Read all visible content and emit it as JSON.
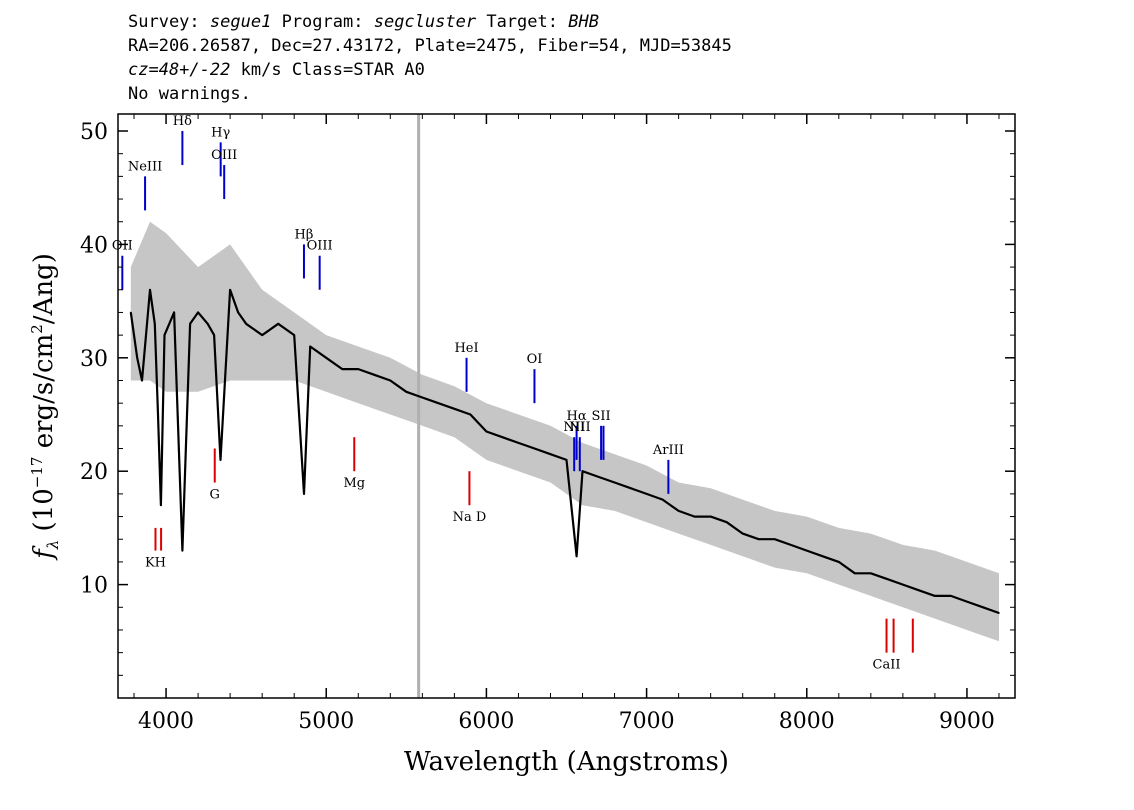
{
  "header": {
    "survey_label": "Survey:",
    "survey": "segue1",
    "program_label": "Program:",
    "program": "segcluster",
    "target_label": "Target:",
    "target": "BHB",
    "line2": "RA=206.26587, Dec=27.43172, Plate=2475, Fiber=54, MJD=53845",
    "redshift": "cz=48+/-22",
    "redshift_unit": "km/s",
    "class_text": "Class=STAR A0",
    "warnings": "No warnings."
  },
  "chart_data": {
    "type": "line",
    "xlabel": "Wavelength (Angstroms)",
    "ylabel": "f_λ (10^-17 erg/s/cm^2/Ang)",
    "xlim": [
      3700,
      9300
    ],
    "ylim": [
      0,
      51.5
    ],
    "x_ticks": [
      4000,
      5000,
      6000,
      7000,
      8000,
      9000
    ],
    "y_ticks": [
      10,
      20,
      30,
      40,
      50
    ],
    "gray_vertical_line_x": 5577,
    "colors": {
      "flux": "#000000",
      "error": "#c0c0c0",
      "emission": "#0000cc",
      "absorption": "#dd0000",
      "marker": "#000000",
      "sky_line": "#b0b0b0"
    },
    "series": [
      {
        "kind": "flux",
        "x": [
          3780,
          3820,
          3850,
          3900,
          3930,
          3950,
          3968,
          3990,
          4050,
          4102,
          4150,
          4200,
          4260,
          4300,
          4340,
          4400,
          4450,
          4500,
          4600,
          4700,
          4800,
          4861,
          4900,
          5000,
          5100,
          5200,
          5300,
          5400,
          5500,
          5600,
          5700,
          5800,
          5900,
          6000,
          6100,
          6200,
          6300,
          6400,
          6500,
          6563,
          6600,
          6700,
          6800,
          6900,
          7000,
          7100,
          7200,
          7300,
          7400,
          7500,
          7600,
          7700,
          7800,
          7900,
          8000,
          8100,
          8200,
          8300,
          8400,
          8500,
          8600,
          8700,
          8800,
          8900,
          9000,
          9100,
          9200
        ],
        "y": [
          34,
          30,
          28,
          36,
          33,
          25,
          17,
          32,
          34,
          13,
          33,
          34,
          33,
          32,
          21,
          36,
          34,
          33,
          32,
          33,
          32,
          18,
          31,
          30,
          29,
          29,
          28.5,
          28,
          27,
          26.5,
          26,
          25.5,
          25,
          23.5,
          23,
          22.5,
          22,
          21.5,
          21,
          12.5,
          20,
          19.5,
          19,
          18.5,
          18,
          17.5,
          16.5,
          16,
          16,
          15.5,
          14.5,
          14,
          14,
          13.5,
          13,
          12.5,
          12,
          11,
          11,
          10.5,
          10,
          9.5,
          9,
          9,
          8.5,
          8,
          7.5
        ]
      },
      {
        "kind": "error_band",
        "x": [
          3780,
          3900,
          4000,
          4200,
          4400,
          4600,
          4800,
          5000,
          5200,
          5400,
          5600,
          5800,
          6000,
          6200,
          6400,
          6600,
          6800,
          7000,
          7200,
          7400,
          7600,
          7800,
          8000,
          8200,
          8400,
          8600,
          8800,
          9000,
          9200
        ],
        "upper": [
          38,
          42,
          41,
          38,
          40,
          36,
          34,
          32,
          31,
          30,
          28.5,
          27.5,
          26,
          25,
          24,
          22.5,
          21.5,
          20.5,
          19,
          18.5,
          17.5,
          16.5,
          16,
          15,
          14.5,
          13.5,
          13,
          12,
          11
        ],
        "lower": [
          28,
          28,
          27,
          27,
          28,
          28,
          28,
          27,
          26,
          25,
          24,
          23,
          21,
          20,
          19,
          17,
          16.5,
          15.5,
          14.5,
          13.5,
          12.5,
          11.5,
          11,
          10,
          9,
          8,
          7,
          6,
          5
        ]
      }
    ],
    "line_markers": [
      {
        "label": "OII",
        "x": 3727,
        "y1": 36,
        "y2": 39,
        "kind": "emission"
      },
      {
        "label": "NeIII",
        "x": 3869,
        "y1": 43,
        "y2": 46,
        "kind": "emission"
      },
      {
        "label": "Hδ",
        "x": 4102,
        "y1": 47,
        "y2": 50,
        "kind": "emission"
      },
      {
        "label": "Hγ",
        "x": 4341,
        "y1": 46,
        "y2": 49,
        "kind": "emission"
      },
      {
        "label": "OIII",
        "x": 4363,
        "y1": 44,
        "y2": 47,
        "kind": "emission"
      },
      {
        "label": "Hβ",
        "x": 4861,
        "y1": 37,
        "y2": 40,
        "kind": "emission"
      },
      {
        "label": "OIII",
        "x": 4959,
        "y1": 36,
        "y2": 39,
        "kind": "emission"
      },
      {
        "label": "HeI",
        "x": 5876,
        "y1": 27,
        "y2": 30,
        "kind": "emission"
      },
      {
        "label": "OI",
        "x": 6300,
        "y1": 26,
        "y2": 29,
        "kind": "emission"
      },
      {
        "label": "NII",
        "x": 6548,
        "y1": 20,
        "y2": 23,
        "kind": "emission"
      },
      {
        "label": "Hα",
        "x": 6563,
        "y1": 21,
        "y2": 24,
        "kind": "emission"
      },
      {
        "label": "NII",
        "x": 6583,
        "y1": 20,
        "y2": 23,
        "kind": "emission"
      },
      {
        "label": "SII",
        "x": 6716,
        "y1": 21,
        "y2": 24,
        "kind": "emission"
      },
      {
        "label": "SII",
        "x": 6731,
        "y1": 21,
        "y2": 24,
        "kind": "emission"
      },
      {
        "label": "ArIII",
        "x": 7136,
        "y1": 18,
        "y2": 21,
        "kind": "emission"
      },
      {
        "label": "KH",
        "x": 3934,
        "y1": 13,
        "y2": 15,
        "kind": "absorption"
      },
      {
        "label": "KH",
        "x": 3969,
        "y1": 13,
        "y2": 15,
        "kind": "absorption"
      },
      {
        "label": "G",
        "x": 4304,
        "y1": 19,
        "y2": 22,
        "kind": "absorption"
      },
      {
        "label": "Mg",
        "x": 5175,
        "y1": 20,
        "y2": 23,
        "kind": "absorption"
      },
      {
        "label": "Na D",
        "x": 5894,
        "y1": 17,
        "y2": 20,
        "kind": "absorption"
      },
      {
        "label": "CaII",
        "x": 8498,
        "y1": 4,
        "y2": 7,
        "kind": "absorption"
      },
      {
        "label": "CaII",
        "x": 8542,
        "y1": 4,
        "y2": 7,
        "kind": "absorption"
      },
      {
        "label": "CaII",
        "x": 8662,
        "y1": 4,
        "y2": 7,
        "kind": "absorption"
      }
    ],
    "label_texts": [
      "OII",
      "NeIII",
      "Hδ",
      "Hγ",
      "OIII",
      "Hβ",
      "OIII",
      "HeI",
      "OI",
      "NII",
      "Hα",
      "NII",
      "SII",
      "ArIII",
      "KH",
      "G",
      "Mg",
      "Na D",
      "CaII"
    ]
  }
}
